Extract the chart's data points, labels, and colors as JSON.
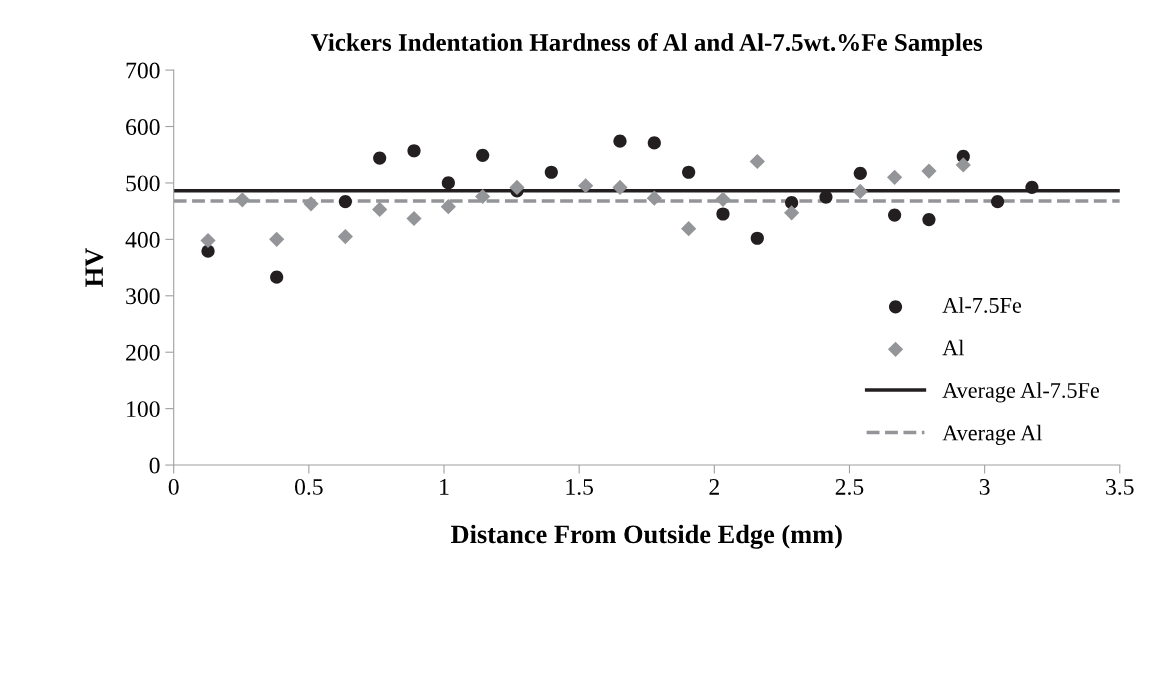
{
  "chart_data": {
    "type": "scatter",
    "title": "Vickers Indentation Hardness of Al and Al-7.5wt.%Fe Samples",
    "xlabel": "Distance From Outside Edge (mm)",
    "ylabel": "HV",
    "series": [
      {
        "name": "Al-7.5Fe",
        "marker": "circle",
        "color": "#231f20",
        "x": [
          0.127,
          0.381,
          0.635,
          0.762,
          0.889,
          1.016,
          1.143,
          1.27,
          1.397,
          1.651,
          1.778,
          1.905,
          2.032,
          2.159,
          2.286,
          2.413,
          2.54,
          2.667,
          2.794,
          2.921,
          3.048,
          3.175
        ],
        "values": [
          379,
          333,
          467,
          544,
          557,
          500,
          549,
          486,
          519,
          574,
          571,
          519,
          445,
          402,
          465,
          475,
          517,
          443,
          435,
          547,
          467,
          492
        ]
      },
      {
        "name": "Al",
        "marker": "diamond",
        "color": "#939598",
        "x": [
          0.127,
          0.254,
          0.381,
          0.508,
          0.635,
          0.762,
          0.889,
          1.016,
          1.143,
          1.27,
          1.524,
          1.651,
          1.778,
          1.905,
          2.032,
          2.159,
          2.286,
          2.54,
          2.667,
          2.794,
          2.921
        ],
        "values": [
          398,
          470,
          400,
          463,
          405,
          453,
          437,
          458,
          476,
          492,
          495,
          492,
          473,
          419,
          471,
          538,
          447,
          485,
          510,
          521,
          532
        ]
      },
      {
        "name": "Average Al-7.5Fe",
        "type": "line",
        "line_style": "solid",
        "color": "#231f20",
        "x": [
          0,
          3.5
        ],
        "values": [
          486,
          486
        ]
      },
      {
        "name": "Average Al",
        "type": "line",
        "line_style": "dashed",
        "color": "#939598",
        "x": [
          0,
          3.5
        ],
        "values": [
          468,
          468
        ]
      }
    ],
    "xlim": [
      0,
      3.5
    ],
    "xticks": [
      0,
      0.5,
      1,
      1.5,
      2,
      2.5,
      3,
      3.5
    ],
    "ylim": [
      0,
      700
    ],
    "yticks": [
      0,
      100,
      200,
      300,
      400,
      500,
      600,
      700
    ],
    "grid": false,
    "legend": "right"
  }
}
